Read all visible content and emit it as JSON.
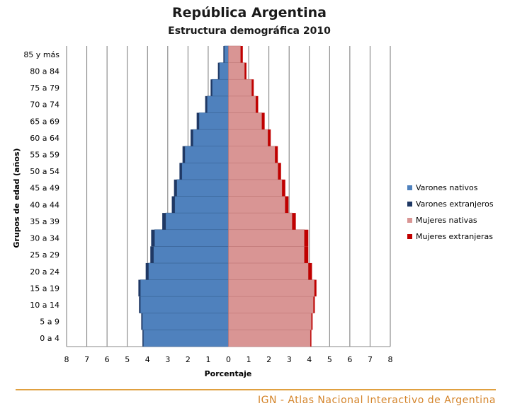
{
  "chart_data": {
    "type": "bar",
    "orientation": "horizontal-pyramid",
    "title": "República Argentina",
    "subtitle": "Estructura demográfica 2010",
    "xlabel": "Porcentaje",
    "ylabel": "Grupos de edad (años)",
    "xlim": [
      -8,
      8
    ],
    "x_ticks": [
      "8",
      "7",
      "6",
      "5",
      "4",
      "3",
      "2",
      "1",
      "0",
      "1",
      "2",
      "3",
      "4",
      "5",
      "6",
      "7",
      "8"
    ],
    "grid": true,
    "legend_position": "right",
    "categories": [
      "0 a 4",
      "5 a 9",
      "10 a 14",
      "15 a 19",
      "20 a 24",
      "25 a 29",
      "30 a 34",
      "35 a 39",
      "40 a 44",
      "45 a 49",
      "50 a 54",
      "55 a 59",
      "60 a 64",
      "65 a 69",
      "70 a 74",
      "75 a 79",
      "80 a 84",
      "85 y más"
    ],
    "series": [
      {
        "name": "Varones nativos",
        "color": "#4f81bd",
        "values": [
          4.2,
          4.25,
          4.35,
          4.35,
          3.95,
          3.7,
          3.65,
          3.1,
          2.65,
          2.55,
          2.3,
          2.15,
          1.75,
          1.45,
          1.05,
          0.8,
          0.45,
          0.2
        ]
      },
      {
        "name": "Varones extranjeros",
        "color": "#1f3864",
        "values": [
          0.05,
          0.06,
          0.07,
          0.1,
          0.14,
          0.16,
          0.17,
          0.17,
          0.15,
          0.14,
          0.12,
          0.12,
          0.12,
          0.12,
          0.1,
          0.08,
          0.07,
          0.05
        ]
      },
      {
        "name": "Mujeres nativas",
        "color": "#d99594",
        "values": [
          4.05,
          4.1,
          4.2,
          4.25,
          3.95,
          3.75,
          3.75,
          3.15,
          2.8,
          2.65,
          2.45,
          2.3,
          1.95,
          1.65,
          1.35,
          1.15,
          0.8,
          0.6
        ]
      },
      {
        "name": "Mujeres extranjeras",
        "color": "#c00000",
        "values": [
          0.05,
          0.06,
          0.07,
          0.1,
          0.18,
          0.2,
          0.2,
          0.18,
          0.17,
          0.16,
          0.15,
          0.14,
          0.14,
          0.14,
          0.12,
          0.1,
          0.09,
          0.11
        ]
      }
    ]
  },
  "footer": {
    "text": "IGN - Atlas Nacional Interactivo de Argentina",
    "color": "#d4842a"
  }
}
